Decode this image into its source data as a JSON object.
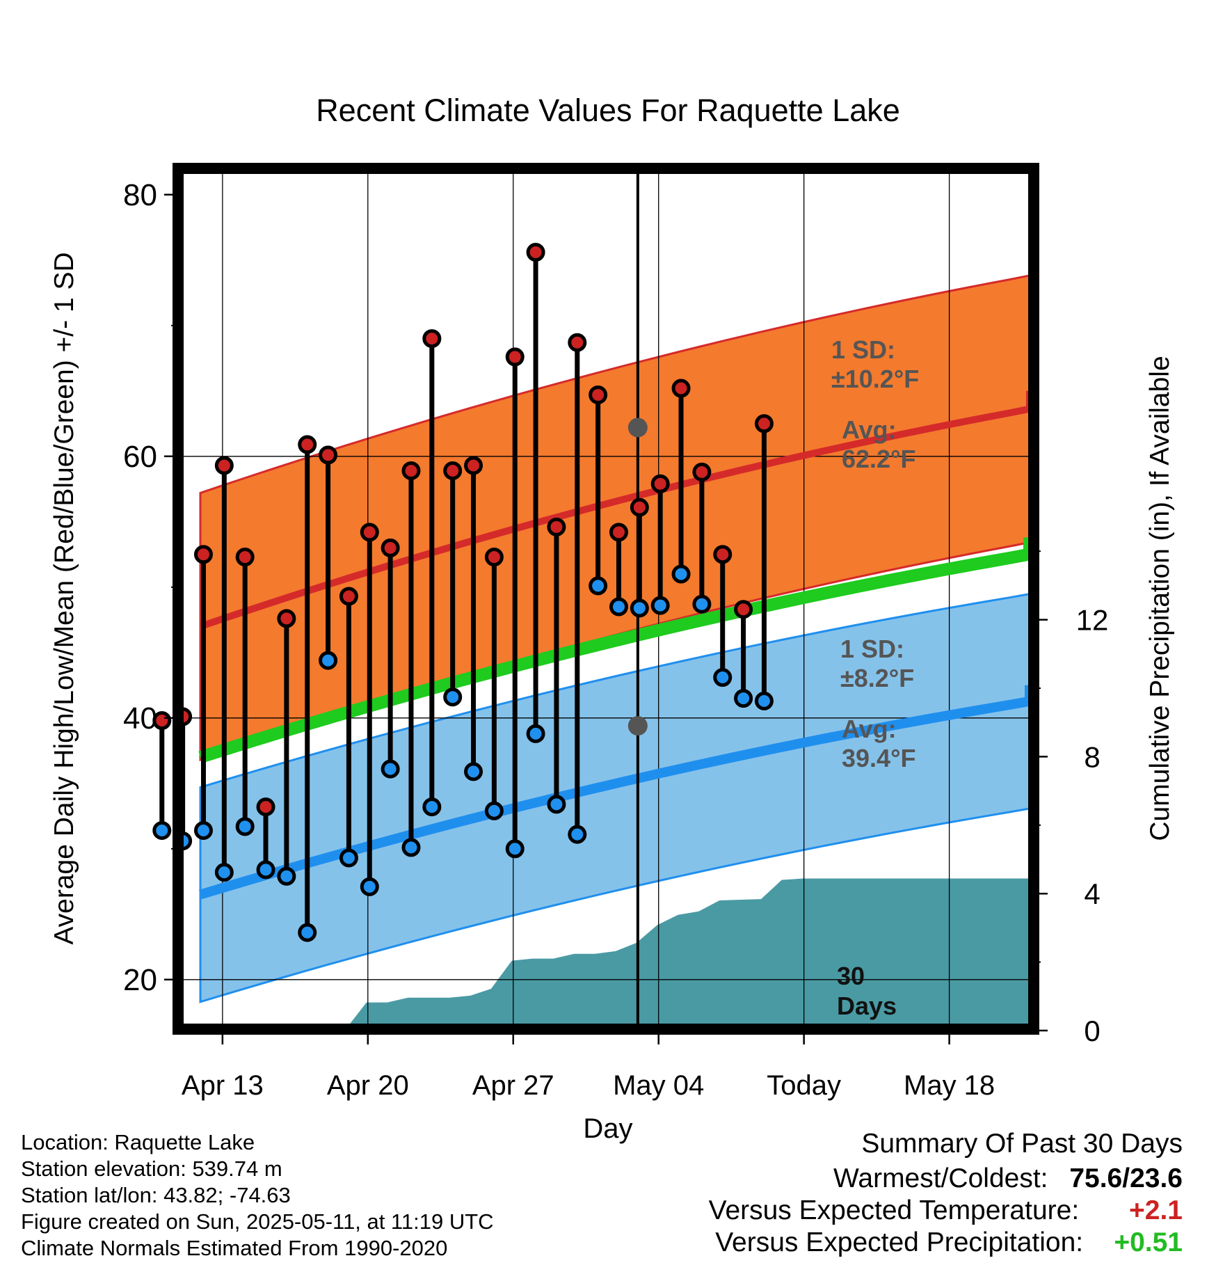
{
  "chart_data": {
    "type": "line",
    "title": "Recent Climate Values For Raquette Lake",
    "xlabel": "Day",
    "ylabel": "Average Daily High/Low/Mean (Red/Blue/Green) +/- 1 SD",
    "y2label": "Cumulative Precipitation (in), If Available",
    "ylim": [
      16,
      80
    ],
    "y2lim": [
      0,
      15.2
    ],
    "x_tick_labels": [
      "Apr 13",
      "Apr 20",
      "Apr 27",
      "May 04",
      "Today",
      "May 18"
    ],
    "y_tick_labels": [
      "20",
      "40",
      "60",
      "80"
    ],
    "y2_tick_labels": [
      "0",
      "4",
      "8",
      "12"
    ],
    "grid": true,
    "high_temps": [
      39.8,
      40.1,
      52.5,
      59.3,
      52.3,
      33.2,
      47.6,
      60.9,
      60.1,
      49.3,
      54.2,
      53.0,
      58.9,
      69.0,
      58.9,
      59.3,
      52.3,
      67.6,
      75.6,
      54.6,
      68.7,
      64.7,
      54.2,
      56.1,
      57.9,
      65.2,
      58.8,
      52.5,
      48.3,
      62.5
    ],
    "low_temps": [
      31.4,
      30.6,
      31.4,
      28.2,
      31.7,
      28.4,
      27.9,
      23.6,
      44.4,
      29.3,
      27.1,
      36.1,
      30.1,
      33.2,
      41.6,
      35.9,
      32.9,
      30.0,
      38.8,
      33.4,
      31.1,
      50.1,
      48.5,
      48.4,
      48.6,
      51.0,
      48.7,
      43.1,
      41.5,
      41.3
    ],
    "normals": {
      "avg_high_start": 47.0,
      "avg_high_end": 65.0,
      "avg_low_start": 26.5,
      "avg_low_end": 42.5,
      "avg_mean_start": 37.0,
      "avg_mean_end": 53.8,
      "high_sd": 10.2,
      "low_sd": 8.2
    },
    "precip_cumulative": [
      0,
      0,
      0,
      0,
      0,
      0.04,
      0.04,
      0.04,
      0.82,
      0.82,
      0.96,
      0.96,
      0.96,
      1.02,
      1.22,
      2.04,
      2.1,
      2.1,
      2.24,
      2.24,
      2.32,
      2.56,
      3.08,
      3.38,
      3.48,
      3.8,
      3.82,
      3.84,
      4.4,
      4.44
    ],
    "annotations": {
      "high_sd_label": "1 SD:",
      "high_sd_value": "±10.2°F",
      "high_avg_label": "Avg:",
      "high_avg_value": "62.2°F",
      "low_sd_label": "1 SD:",
      "low_sd_value": "±8.2°F",
      "low_avg_label": "Avg:",
      "low_avg_value": "39.4°F",
      "today_avg_high": 62.2,
      "today_avg_low": 39.4,
      "days_num": "30",
      "days_label": "Days"
    },
    "colors": {
      "high_band": "#f47a2e",
      "high_line": "#d52a2a",
      "low_band": "#85c2ea",
      "low_line": "#1f8fee",
      "mean_line": "#1ecb1e",
      "precip": "#4a9aa4",
      "high_dot": "#cc2222",
      "low_dot": "#1f90ee",
      "annotation": "#555555"
    }
  },
  "info": {
    "location": "Location: Raquette Lake",
    "elevation": "Station elevation: 539.74 m",
    "latlon": "Station lat/lon: 43.82; -74.63",
    "created": "Figure created on Sun, 2025-05-11, at 11:19 UTC",
    "normals": "Climate Normals Estimated From 1990-2020"
  },
  "summary": {
    "title": "Summary Of Past 30 Days",
    "warm_cold_label": "Warmest/Coldest:",
    "warm_cold_value": "75.6/23.6",
    "temp_label": "Versus Expected Temperature:",
    "temp_value": "+2.1",
    "temp_color": "#cc2222",
    "precip_label": "Versus Expected Precipitation:",
    "precip_value": "+0.51",
    "precip_color": "#22bb22"
  }
}
